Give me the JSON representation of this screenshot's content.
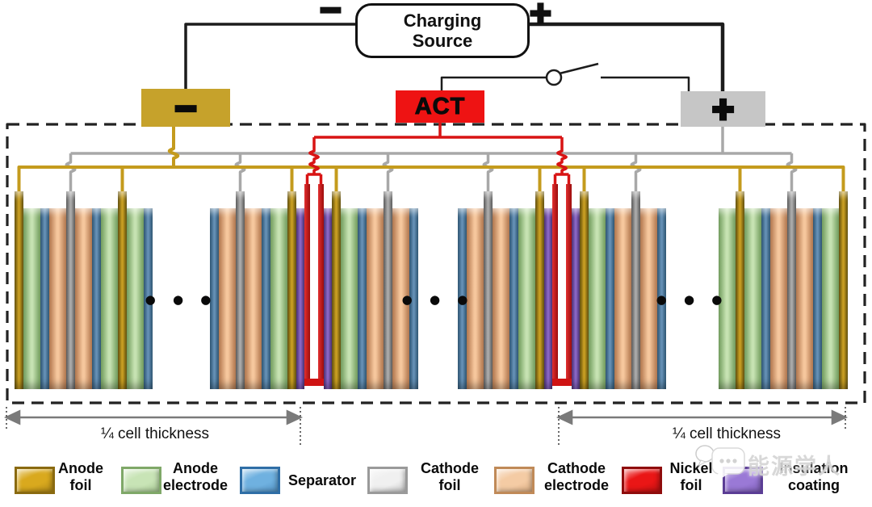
{
  "charging_source": {
    "line1": "Charging",
    "line2": "Source",
    "minus_symbol": "−",
    "plus_symbol": "+"
  },
  "terminals": {
    "negative": "−",
    "positive": "+"
  },
  "act_label": "ACT",
  "dimension_left": "¼ cell thickness",
  "dimension_right": "¼ cell thickness",
  "ellipsis": "● ● ●",
  "watermark_text": "能源学人",
  "colors": {
    "wire_black": "#1c1c1c",
    "wire_gold": "#c49b1d",
    "wire_gray": "#a8a8a8",
    "wire_red": "#d81414",
    "dash_border": "#222222",
    "dimension_gray": "#7a7a7a",
    "terminal_negative_fill": "#c6a22b",
    "terminal_positive_fill": "#c6c6c6",
    "act_fill": "#ee1313"
  },
  "layer_types": {
    "anode_foil": {
      "label": "Anode foil",
      "kind": "foil",
      "edge": "#5c4a07",
      "face": "#c89e22"
    },
    "anode_electrode": {
      "label": "Anode electrode",
      "kind": "normal",
      "edge": "#6f9b5a",
      "face": "#c6e2b2"
    },
    "separator": {
      "label": "Separator",
      "kind": "normal",
      "edge": "#27506f",
      "face": "#6590b5"
    },
    "cathode_electrode": {
      "label": "Cathode electrode",
      "kind": "normal",
      "edge": "#b0744a",
      "face": "#f6c79d"
    },
    "cathode_foil": {
      "label": "Cathode foil",
      "kind": "foil",
      "edge": "#565656",
      "face": "#ababab"
    },
    "coating": {
      "label": "Insulation coating",
      "kind": "normal",
      "edge": "#44296e",
      "face": "#8a67c5"
    },
    "nickel_foil": {
      "label": "Nickel foil",
      "kind": "u",
      "edge": "#6e0808",
      "face": "#cf1313"
    }
  },
  "groups": [
    [
      "anode_foil",
      "anode_electrode",
      "separator",
      "cathode_electrode",
      "cathode_foil",
      "cathode_electrode",
      "separator",
      "anode_electrode",
      "anode_foil",
      "anode_electrode",
      "separator"
    ],
    [
      "separator",
      "cathode_electrode",
      "cathode_foil",
      "cathode_electrode",
      "separator",
      "anode_electrode",
      "anode_foil",
      "coating",
      "nickel_foil",
      "coating",
      "anode_foil",
      "anode_electrode",
      "separator",
      "cathode_electrode",
      "cathode_foil",
      "cathode_electrode",
      "separator"
    ],
    [
      "separator",
      "cathode_electrode",
      "cathode_foil",
      "cathode_electrode",
      "separator",
      "anode_electrode",
      "anode_foil",
      "coating",
      "nickel_foil",
      "coating",
      "anode_foil",
      "anode_electrode",
      "separator",
      "cathode_electrode",
      "cathode_foil",
      "cathode_electrode",
      "separator"
    ],
    [
      "anode_electrode",
      "anode_foil",
      "anode_electrode",
      "separator",
      "cathode_electrode",
      "cathode_foil",
      "cathode_electrode",
      "separator",
      "anode_electrode",
      "anode_foil"
    ]
  ],
  "legend": [
    {
      "id": "anode-foil",
      "line1": "Anode",
      "line2": "foil",
      "edge": "#8a6a10",
      "face": "#d9a91e"
    },
    {
      "id": "anode-electrode",
      "line1": "Anode",
      "line2": "electrode",
      "edge": "#7fa868",
      "face": "#c8e4b6"
    },
    {
      "id": "separator",
      "line1": "Separator",
      "line2": "",
      "edge": "#2f6ea6",
      "face": "#6fb1e0"
    },
    {
      "id": "cathode-foil",
      "line1": "Cathode",
      "line2": "foil",
      "edge": "#9a9a9a",
      "face": "#f0f0f0"
    },
    {
      "id": "cathode-electrode",
      "line1": "Cathode",
      "line2": "electrode",
      "edge": "#c08a58",
      "face": "#f4cba4"
    },
    {
      "id": "nickel-foil",
      "line1": "Nickel",
      "line2": "foil",
      "edge": "#8f0c0c",
      "face": "#ea1616"
    },
    {
      "id": "insulation-coating",
      "line1": "Insulation",
      "line2": "coating",
      "edge": "#5b3d95",
      "face": "#9a79d6"
    }
  ]
}
